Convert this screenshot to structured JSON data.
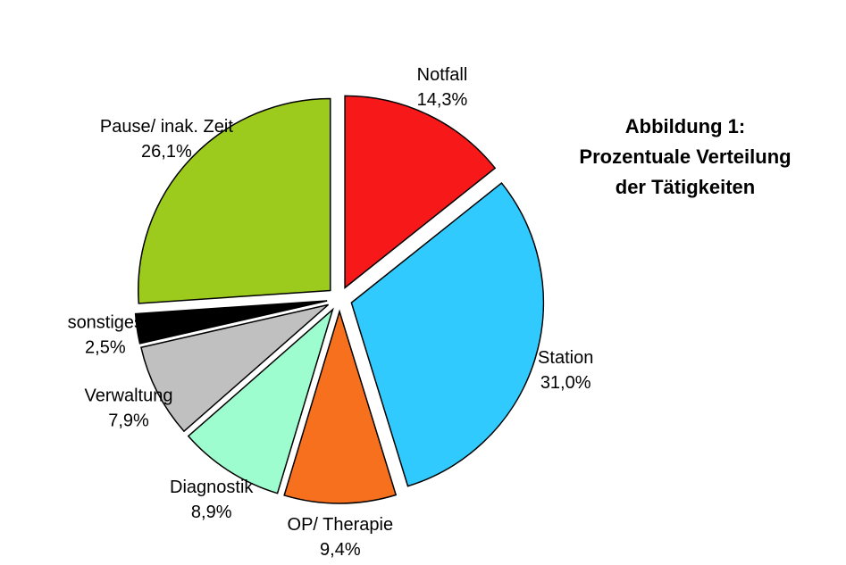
{
  "chart_data": {
    "type": "pie",
    "title": [
      "Abbildung 1:",
      "Prozentuale Verteilung",
      "der Tätigkeiten"
    ],
    "legend": "none",
    "slices": [
      {
        "label": "Notfall",
        "value": 14.3,
        "display": "14,3%",
        "color": "#f71919"
      },
      {
        "label": "Station",
        "value": 31.0,
        "display": "31,0%",
        "color": "#30caff"
      },
      {
        "label": "OP/ Therapie",
        "value": 9.4,
        "display": "9,4%",
        "color": "#f6701e"
      },
      {
        "label": "Diagnostik",
        "value": 8.9,
        "display": "8,9%",
        "color": "#9dfdcf"
      },
      {
        "label": "Verwaltung",
        "value": 7.9,
        "display": "7,9%",
        "color": "#c0c0c0"
      },
      {
        "label": "sonstiges",
        "value": 2.5,
        "display": "2,5%",
        "color": "#000000"
      },
      {
        "label": "Pause/ inak. Zeit",
        "value": 26.1,
        "display": "26,1%",
        "color": "#9ccb1d"
      }
    ]
  }
}
